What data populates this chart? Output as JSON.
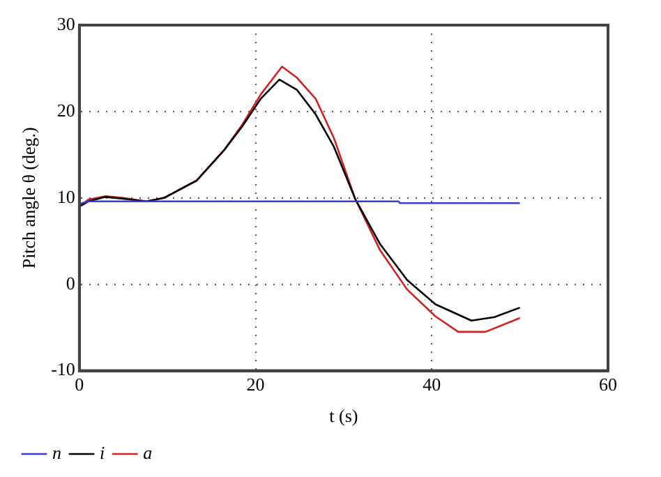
{
  "chart_data": {
    "type": "line",
    "xlabel": "t (s)",
    "ylabel": "Pitch angle θ (deg.)",
    "xlim": [
      0,
      60
    ],
    "xticks": [
      0,
      20,
      40,
      60
    ],
    "ylim": [
      -10,
      30
    ],
    "yticks": [
      -10,
      0,
      10,
      20,
      30
    ],
    "grid": true,
    "legend": "bottom left",
    "marker": "none",
    "line_style": "solid",
    "series": [
      {
        "name": "n",
        "color": "#3b3bd0",
        "x": [
          0,
          1,
          36.2,
          36.4,
          50
        ],
        "values": [
          9.3,
          9.6,
          9.6,
          9.4,
          9.4
        ]
      },
      {
        "name": "i",
        "color": "#000000",
        "x": [
          0,
          1,
          2.9,
          5,
          7.6,
          9.6,
          13.3,
          16.4,
          18.5,
          20.6,
          22.7,
          24.7,
          26.8,
          28.9,
          31.3,
          34.1,
          37.2,
          40.4,
          44.5,
          47.1,
          50
        ],
        "values": [
          9,
          9.6,
          10.1,
          9.9,
          9.6,
          10,
          12,
          15.5,
          18.3,
          21.5,
          23.7,
          22.5,
          19.7,
          15.9,
          9.9,
          4.7,
          0.5,
          -2.3,
          -4.2,
          -3.8,
          -2.7
        ]
      },
      {
        "name": "a",
        "color": "#d02020",
        "x": [
          0,
          1,
          3,
          5,
          7.6,
          9.6,
          13.3,
          16.4,
          18.5,
          20.6,
          23,
          24.7,
          26.8,
          28.9,
          31.3,
          34.1,
          37.2,
          40.4,
          43,
          46.1,
          50
        ],
        "values": [
          9,
          9.8,
          10.2,
          10,
          9.6,
          10,
          12,
          15.5,
          18.5,
          22,
          25.2,
          23.9,
          21.5,
          16.9,
          9.9,
          4,
          -0.6,
          -3.7,
          -5.5,
          -5.5,
          -3.9
        ]
      }
    ]
  }
}
